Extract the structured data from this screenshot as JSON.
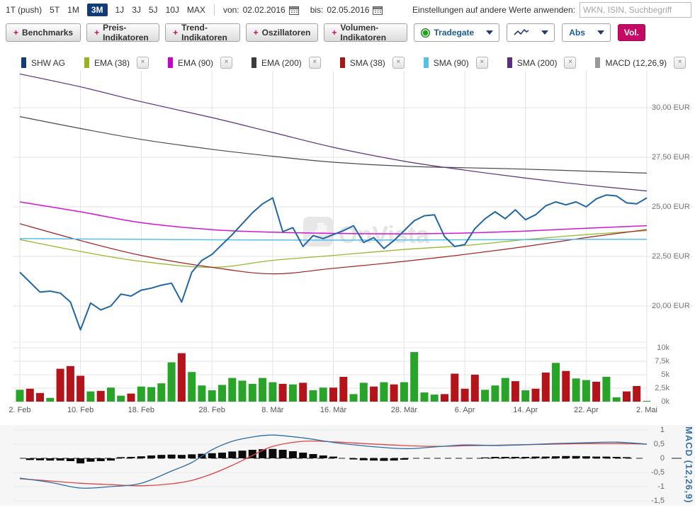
{
  "toolbar": {
    "ranges": [
      {
        "label": "1T (push)",
        "active": false
      },
      {
        "label": "5T",
        "active": false
      },
      {
        "label": "1M",
        "active": false
      },
      {
        "label": "3M",
        "active": true
      },
      {
        "label": "1J",
        "active": false
      },
      {
        "label": "3J",
        "active": false
      },
      {
        "label": "5J",
        "active": false
      },
      {
        "label": "10J",
        "active": false
      },
      {
        "label": "MAX",
        "active": false
      }
    ],
    "von_label": "von:",
    "von_value": "02.02.2016",
    "bis_label": "bis:",
    "bis_value": "02.05.2016",
    "apply_label": "Einstellungen auf andere Werte anwenden:",
    "search_placeholder": "WKN, ISIN, Suchbegriff"
  },
  "indicator_buttons": [
    "Benchmarks",
    "Preis-Indikatoren",
    "Trend-Indikatoren",
    "Oszillatoren",
    "Volumen-Indikatoren"
  ],
  "controls": {
    "exchange": "Tradegate",
    "chart_type_icon": "zigzag-line",
    "scale": "Abs",
    "volume_button": "Vol."
  },
  "legend": [
    {
      "label": "SHW AG",
      "color": "#123c78",
      "closable": false
    },
    {
      "label": "EMA (38)",
      "color": "#96b422",
      "closable": true
    },
    {
      "label": "EMA (90)",
      "color": "#cc00cc",
      "closable": true
    },
    {
      "label": "EMA (200)",
      "color": "#3c3c3c",
      "closable": true
    },
    {
      "label": "SMA (38)",
      "color": "#aa1515",
      "closable": true
    },
    {
      "label": "SMA (90)",
      "color": "#55c0e8",
      "closable": true
    },
    {
      "label": "SMA (200)",
      "color": "#5c2d80",
      "closable": true
    },
    {
      "label": "MACD (12,26,9)",
      "color": "#999999",
      "closable": true
    }
  ],
  "watermark": "OnVista",
  "chart_data": [
    {
      "id": "price",
      "type": "line",
      "unit": "EUR",
      "n_points": 63,
      "x_ticks": [
        {
          "idx": 0,
          "label": "2. Feb"
        },
        {
          "idx": 6,
          "label": "10. Feb"
        },
        {
          "idx": 12,
          "label": "18. Feb"
        },
        {
          "idx": 19,
          "label": "28. Feb"
        },
        {
          "idx": 25,
          "label": "8. Mär"
        },
        {
          "idx": 31,
          "label": "16. Mär"
        },
        {
          "idx": 38,
          "label": "28. Mär"
        },
        {
          "idx": 44,
          "label": "6. Apr"
        },
        {
          "idx": 50,
          "label": "14. Apr"
        },
        {
          "idx": 56,
          "label": "22. Apr"
        },
        {
          "idx": 62,
          "label": "2. Mai"
        }
      ],
      "y_ticks": [
        {
          "value": 30,
          "label": "30,00 EUR"
        },
        {
          "value": 27.5,
          "label": "27,50 EUR"
        },
        {
          "value": 25,
          "label": "25,00 EUR"
        },
        {
          "value": 22.5,
          "label": "22,50 EUR"
        },
        {
          "value": 20,
          "label": "20,00 EUR"
        }
      ],
      "ylim": [
        18.5,
        32.0
      ],
      "series": [
        {
          "name": "SHW AG",
          "color": "#2166a5",
          "width": 2,
          "smooth": false,
          "values": [
            21.7,
            21.2,
            20.7,
            20.75,
            20.65,
            20.2,
            18.8,
            20.15,
            19.8,
            20.0,
            20.6,
            20.5,
            20.8,
            20.9,
            21.05,
            21.15,
            20.2,
            21.7,
            22.3,
            22.6,
            23.1,
            23.6,
            24.15,
            24.7,
            25.15,
            25.45,
            23.75,
            23.95,
            23.0,
            23.55,
            23.4,
            23.6,
            23.8,
            24.05,
            23.2,
            23.45,
            22.9,
            23.3,
            23.8,
            24.3,
            24.55,
            24.6,
            23.5,
            23.0,
            23.1,
            23.9,
            24.4,
            24.75,
            24.4,
            24.85,
            24.35,
            24.6,
            25.05,
            25.25,
            25.1,
            25.25,
            25.0,
            25.4,
            25.6,
            25.55,
            25.2,
            25.15,
            25.45
          ]
        },
        {
          "name": "EMA (38)",
          "color": "#9ab82e",
          "width": 1.3,
          "smooth": true,
          "anchor_idx": [
            0,
            6,
            12,
            19,
            25,
            31,
            38,
            44,
            50,
            56,
            62
          ],
          "values": [
            23.35,
            22.75,
            22.25,
            21.95,
            22.3,
            22.55,
            22.85,
            23.05,
            23.35,
            23.6,
            23.8
          ]
        },
        {
          "name": "EMA (90)",
          "color": "#d316d3",
          "width": 1.5,
          "smooth": true,
          "anchor_idx": [
            0,
            6,
            12,
            19,
            25,
            31,
            38,
            44,
            50,
            56,
            62
          ],
          "values": [
            25.25,
            24.75,
            24.2,
            23.85,
            23.72,
            23.66,
            23.64,
            23.68,
            23.78,
            23.92,
            24.05
          ]
        },
        {
          "name": "EMA (200)",
          "color": "#4a4a4a",
          "width": 1.2,
          "smooth": true,
          "anchor_idx": [
            0,
            6,
            12,
            19,
            25,
            31,
            38,
            44,
            50,
            56,
            62
          ],
          "values": [
            29.55,
            28.95,
            28.4,
            27.9,
            27.55,
            27.25,
            27.05,
            26.97,
            26.9,
            26.8,
            26.7
          ]
        },
        {
          "name": "SMA (38)",
          "color": "#a32020",
          "width": 1.2,
          "smooth": true,
          "anchor_idx": [
            0,
            6,
            12,
            19,
            25,
            31,
            38,
            44,
            50,
            56,
            62
          ],
          "values": [
            24.15,
            23.3,
            22.55,
            21.95,
            21.62,
            21.9,
            22.25,
            22.6,
            23.0,
            23.45,
            23.85
          ]
        },
        {
          "name": "SMA (90)",
          "color": "#55c0e8",
          "width": 1.5,
          "smooth": true,
          "anchor_idx": [
            0,
            6,
            12,
            19,
            25,
            31,
            38,
            44,
            50,
            56,
            62
          ],
          "values": [
            23.4,
            23.38,
            23.36,
            23.34,
            23.33,
            23.32,
            23.33,
            23.34,
            23.35,
            23.36,
            23.36
          ]
        },
        {
          "name": "SMA (200)",
          "color": "#5b2c80",
          "width": 1.2,
          "smooth": true,
          "anchor_idx": [
            0,
            6,
            12,
            19,
            25,
            31,
            38,
            44,
            50,
            56,
            62
          ],
          "values": [
            31.7,
            31.05,
            30.3,
            29.5,
            28.75,
            28.0,
            27.3,
            26.85,
            26.45,
            26.1,
            25.8
          ]
        }
      ]
    },
    {
      "id": "volume",
      "type": "bar",
      "y_ticks": [
        {
          "value": 10,
          "label": "10k"
        },
        {
          "value": 7.5,
          "label": "7,5k"
        },
        {
          "value": 5,
          "label": "5k"
        },
        {
          "value": 2.5,
          "label": "2,5k"
        },
        {
          "value": 0,
          "label": "0k"
        }
      ],
      "unit": "k shares",
      "values": [
        2.2,
        2.4,
        1.6,
        0.7,
        6.1,
        6.6,
        4.8,
        1.9,
        2.0,
        2.6,
        1.1,
        1.5,
        2.8,
        2.7,
        3.4,
        7.3,
        9.0,
        5.5,
        3.0,
        2.1,
        3.1,
        4.4,
        3.9,
        3.3,
        4.4,
        3.6,
        3.3,
        3.2,
        3.5,
        2.1,
        2.6,
        2.6,
        4.6,
        1.4,
        3.5,
        2.8,
        3.6,
        3.2,
        3.6,
        9.2,
        1.7,
        1.3,
        1.4,
        5.2,
        2.4,
        5.0,
        2.2,
        3.0,
        4.4,
        3.8,
        2.1,
        2.4,
        5.4,
        7.2,
        5.7,
        4.3,
        4.0,
        3.7,
        4.6,
        0.8,
        1.9,
        2.9,
        0.15
      ],
      "colors": "grrgrrrgrggrggggrgggggggggrgrggrrggrgrggggrrrrgggrgrrgrggrggrrg",
      "color_map": {
        "g": "#28a428",
        "r": "#b41419"
      }
    },
    {
      "id": "macd",
      "type": "macd",
      "label": "MACD (12,26,9)",
      "y_ticks": [
        {
          "value": 1,
          "label": "1"
        },
        {
          "value": 0.5,
          "label": "0,5"
        },
        {
          "value": 0,
          "label": "0"
        },
        {
          "value": -0.5,
          "label": "-0,5"
        },
        {
          "value": -1,
          "label": "-1"
        },
        {
          "value": -1.5,
          "label": "-1,5"
        }
      ],
      "histogram": [
        -0.02,
        -0.06,
        -0.07,
        -0.08,
        -0.08,
        -0.1,
        -0.18,
        -0.12,
        -0.1,
        -0.08,
        0.04,
        0.05,
        0.07,
        0.1,
        0.12,
        0.13,
        0.12,
        0.14,
        0.16,
        0.18,
        0.2,
        0.24,
        0.27,
        0.3,
        0.32,
        0.33,
        0.3,
        0.25,
        0.2,
        0.15,
        0.1,
        0.06,
        0.02,
        -0.04,
        -0.07,
        -0.08,
        -0.09,
        -0.08,
        -0.05,
        -0.02,
        0,
        0,
        0,
        0.02,
        0.02,
        0.02,
        0.03,
        0.05,
        0.05,
        0.05,
        0.05,
        0.06,
        0.06,
        0.07,
        0.08,
        0.08,
        0.07,
        0.06,
        0.06,
        0.05,
        0.04,
        0.02,
        0.02
      ],
      "lines": [
        {
          "name": "MACD",
          "color": "#2e6da4",
          "width": 1.3,
          "anchor_idx": [
            0,
            3,
            6,
            9,
            12,
            15,
            17,
            19,
            21,
            23,
            25,
            28,
            31,
            34,
            38,
            41,
            44,
            47,
            50,
            53,
            56,
            59,
            62
          ],
          "values": [
            -0.7,
            -0.85,
            -1.05,
            -1.0,
            -0.88,
            -0.45,
            -0.15,
            0.3,
            0.6,
            0.75,
            0.82,
            0.72,
            0.56,
            0.44,
            0.34,
            0.4,
            0.47,
            0.45,
            0.48,
            0.52,
            0.55,
            0.57,
            0.5
          ]
        },
        {
          "name": "Signal",
          "color": "#e04444",
          "width": 1.3,
          "anchor_idx": [
            0,
            3,
            6,
            9,
            12,
            15,
            17,
            19,
            21,
            23,
            25,
            28,
            31,
            34,
            38,
            41,
            44,
            47,
            50,
            53,
            56,
            59,
            62
          ],
          "values": [
            -0.72,
            -0.8,
            -0.88,
            -0.93,
            -0.97,
            -0.9,
            -0.78,
            -0.55,
            -0.25,
            0.1,
            0.42,
            0.6,
            0.58,
            0.52,
            0.45,
            0.42,
            0.44,
            0.46,
            0.48,
            0.5,
            0.52,
            0.52,
            0.5
          ]
        }
      ]
    }
  ]
}
